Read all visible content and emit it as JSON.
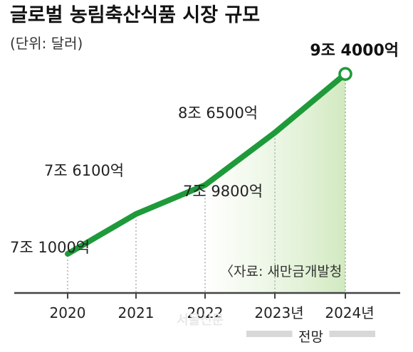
{
  "chart_data": {
    "type": "line",
    "title": "글로벌 농림축산식품 시장 규모",
    "unit_label": "(단위: 달러)",
    "categories": [
      "2020",
      "2021",
      "2022",
      "2023년",
      "2024년"
    ],
    "values": [
      7.1,
      7.61,
      7.98,
      8.65,
      9.4
    ],
    "value_labels": [
      "7조 1000억",
      "7조 6100억",
      "7조 9800억",
      "8조 6500억",
      "9조 4000억"
    ],
    "forecast_label": "전망",
    "forecast_from_index": 3,
    "source": "〈자료: 새만금개발청",
    "ylim": [
      6.6,
      9.6
    ],
    "colors": {
      "line": "#1e9a3a",
      "shade": "#dff0d2",
      "axis": "#444444",
      "guide": "#9a9a9a"
    }
  },
  "watermark": "서울신문"
}
